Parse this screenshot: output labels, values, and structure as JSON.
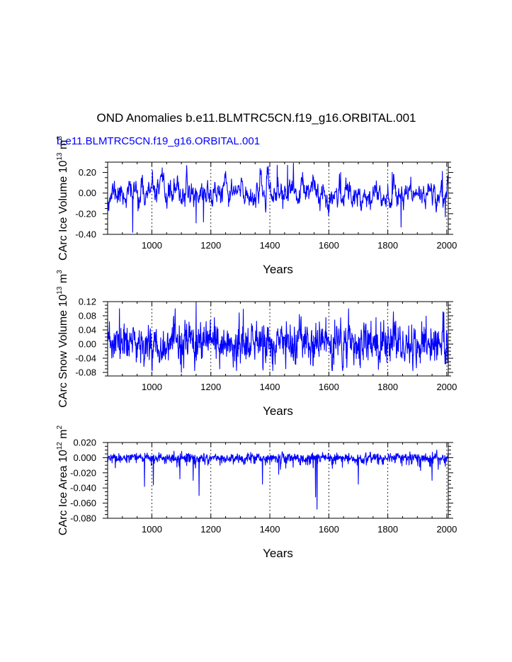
{
  "title": "OND Anomalies b.e11.BLMTRC5CN.f19_g16.ORBITAL.001",
  "subtitle": "b.e11.BLMTRC5CN.f19_g16.ORBITAL.001",
  "colors": {
    "series": "#0000ff",
    "axis": "#000000",
    "grid": "#000000"
  },
  "chart_data": [
    {
      "type": "line",
      "xlabel": "Years",
      "ylabel_main": "CArc Ice Volume 10",
      "ylabel_exp1": "13",
      "ylabel_unit": " m",
      "ylabel_exp2": "3",
      "xlim": [
        850,
        2005
      ],
      "ylim": [
        -0.4,
        0.3
      ],
      "xticks": [
        1000,
        1200,
        1400,
        1600,
        1800,
        2000
      ],
      "xtick_labels": [
        "1000",
        "1200",
        "1400",
        "1600",
        "1800",
        "2000"
      ],
      "yticks": [
        -0.4,
        -0.2,
        0.0,
        0.2
      ],
      "ytick_labels": [
        "-0.40",
        "-0.20",
        "0.00",
        "0.20"
      ],
      "y_minor_step": 0.05,
      "grid": "vertical dashed at major x ticks",
      "series": [
        {
          "name": "CArc Ice Volume",
          "seed": 11,
          "rho": 0.72,
          "sigma": 0.07,
          "clip": [
            -0.38,
            0.29
          ],
          "peaks": [
            [
              935,
              -0.38
            ],
            [
              1845,
              -0.33
            ],
            [
              1480,
              0.29
            ],
            [
              1460,
              0.27
            ],
            [
              1395,
              0.26
            ],
            [
              1425,
              0.27
            ],
            [
              1150,
              -0.29
            ],
            [
              1175,
              -0.28
            ],
            [
              1640,
              0.2
            ],
            [
              1815,
              0.2
            ],
            [
              1985,
              0.21
            ],
            [
              1995,
              -0.23
            ]
          ]
        }
      ]
    },
    {
      "type": "line",
      "xlabel": "Years",
      "ylabel_main": "CArc Snow Volume 10",
      "ylabel_exp1": "13",
      "ylabel_unit": " m",
      "ylabel_exp2": "3",
      "xlim": [
        850,
        2005
      ],
      "ylim": [
        -0.09,
        0.12
      ],
      "xticks": [
        1000,
        1200,
        1400,
        1600,
        1800,
        2000
      ],
      "xtick_labels": [
        "1000",
        "1200",
        "1400",
        "1600",
        "1800",
        "2000"
      ],
      "yticks": [
        -0.08,
        -0.04,
        0.0,
        0.04,
        0.08,
        0.12
      ],
      "ytick_labels": [
        "-0.08",
        "-0.04",
        "0.00",
        "0.04",
        "0.08",
        "0.12"
      ],
      "y_minor_step": 0.01,
      "grid": "vertical dashed at major x ticks",
      "series": [
        {
          "name": "CArc Snow Volume",
          "seed": 23,
          "rho": 0.35,
          "sigma": 0.028,
          "clip": [
            -0.075,
            0.1
          ],
          "peaks": [
            [
              1150,
              0.113
            ],
            [
              1100,
              -0.08
            ],
            [
              890,
              0.1
            ],
            [
              1230,
              -0.07
            ],
            [
              1610,
              -0.065
            ],
            [
              1990,
              0.09
            ],
            [
              1760,
              0.075
            ],
            [
              1590,
              0.075
            ]
          ]
        }
      ]
    },
    {
      "type": "line",
      "xlabel": "Years",
      "ylabel_main": "CArc Ice Area 10",
      "ylabel_exp1": "12",
      "ylabel_unit": " m",
      "ylabel_exp2": "2",
      "xlim": [
        850,
        2005
      ],
      "ylim": [
        -0.08,
        0.02
      ],
      "xticks": [
        1000,
        1200,
        1400,
        1600,
        1800,
        2000
      ],
      "xtick_labels": [
        "1000",
        "1200",
        "1400",
        "1600",
        "1800",
        "2000"
      ],
      "yticks": [
        -0.08,
        -0.06,
        -0.04,
        -0.02,
        0.0,
        0.02
      ],
      "ytick_labels": [
        "-0.080",
        "-0.060",
        "-0.040",
        "-0.020",
        "0.000",
        "0.020"
      ],
      "y_minor_step": 0.005,
      "grid": "vertical dashed at major x ticks",
      "series": [
        {
          "name": "CArc Ice Area",
          "seed": 37,
          "rho": 0.3,
          "sigma": 0.003,
          "clip": [
            -0.068,
            0.01
          ],
          "spike_prob": 0.12,
          "spike_scale": 0.012,
          "peaks": [
            [
              1560,
              -0.068
            ],
            [
              1555,
              -0.052
            ],
            [
              1160,
              -0.05
            ],
            [
              1375,
              -0.035
            ],
            [
              1005,
              -0.036
            ],
            [
              1140,
              -0.03
            ],
            [
              1095,
              -0.028
            ],
            [
              1950,
              -0.03
            ],
            [
              1700,
              -0.035
            ],
            [
              975,
              -0.038
            ],
            [
              1430,
              -0.022
            ]
          ]
        }
      ]
    }
  ]
}
